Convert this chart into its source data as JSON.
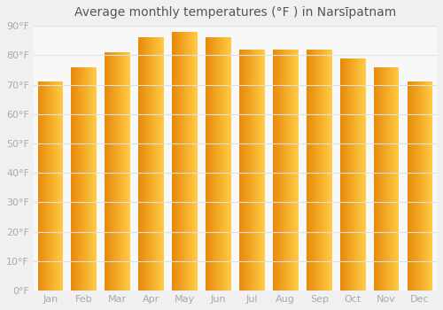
{
  "months": [
    "Jan",
    "Feb",
    "Mar",
    "Apr",
    "May",
    "Jun",
    "Jul",
    "Aug",
    "Sep",
    "Oct",
    "Nov",
    "Dec"
  ],
  "values": [
    71,
    76,
    81,
    86,
    88,
    86,
    82,
    82,
    82,
    79,
    76,
    71
  ],
  "bar_color_left": "#E8890A",
  "bar_color_right": "#FFCC44",
  "title": "Average monthly temperatures (°F ) in Narsīpatnam",
  "ylim": [
    0,
    90
  ],
  "yticks": [
    0,
    10,
    20,
    30,
    40,
    50,
    60,
    70,
    80,
    90
  ],
  "ytick_labels": [
    "0°F",
    "10°F",
    "20°F",
    "30°F",
    "40°F",
    "50°F",
    "60°F",
    "70°F",
    "80°F",
    "90°F"
  ],
  "background_color": "#f0f0f0",
  "plot_bg_color": "#f8f8f8",
  "grid_color": "#e0e0e0",
  "title_fontsize": 10,
  "tick_fontsize": 8,
  "tick_color": "#aaaaaa"
}
